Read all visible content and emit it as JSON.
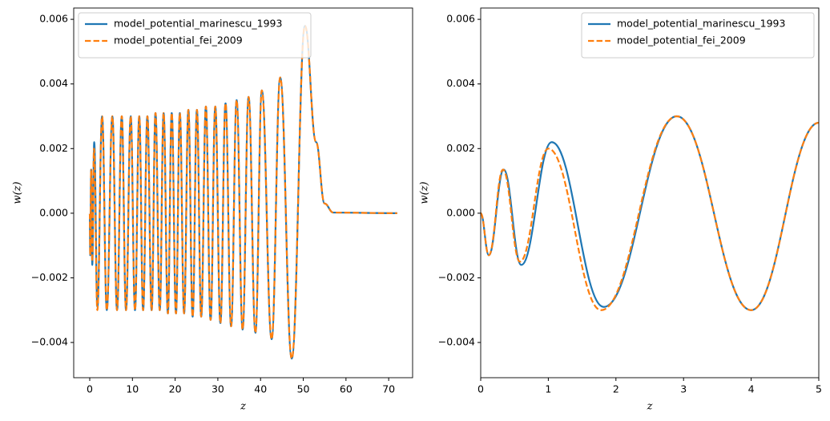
{
  "chart_data": [
    {
      "type": "line",
      "xlabel": "z",
      "ylabel": "w(z)",
      "legend": "upper left",
      "xlim": [
        -3.75,
        75.6
      ],
      "ylim": [
        -0.00509,
        0.00635
      ],
      "xticks": [
        0,
        10,
        20,
        30,
        40,
        50,
        60,
        70
      ],
      "yticks": [
        {
          "value": -0.004,
          "label": "−0.004"
        },
        {
          "value": -0.002,
          "label": "−0.002"
        },
        {
          "value": 0,
          "label": "0.000"
        },
        {
          "value": 0.002,
          "label": "0.002"
        },
        {
          "value": 0.004,
          "label": "0.004"
        },
        {
          "value": 0.006,
          "label": "0.006"
        }
      ],
      "series": [
        {
          "name": "model_potential_marinescu_1993",
          "color": "#1f77b4",
          "linestyle": "solid",
          "x": [
            0,
            0.12,
            0.34,
            0.6,
            1.05,
            1.8,
            2.9,
            4.0,
            5.3,
            6.4,
            7.5,
            8.5,
            9.6,
            10.6,
            11.6,
            12.5,
            13.5,
            14.5,
            15.4,
            16.4,
            17.3,
            18.3,
            19.2,
            20.2,
            21.1,
            22.1,
            23.1,
            24.1,
            25.1,
            26.1,
            27.2,
            28.3,
            29.4,
            30.6,
            31.8,
            33.1,
            34.4,
            35.8,
            37.2,
            38.8,
            40.3,
            42.6,
            44.6,
            47.3,
            50.4,
            53,
            55,
            57,
            72
          ],
          "values": [
            0,
            -0.0013,
            0.00135,
            -0.0016,
            0.0022,
            -0.0029,
            0.003,
            -0.003,
            0.003,
            -0.003,
            0.003,
            -0.003,
            0.003,
            -0.003,
            0.003,
            -0.003,
            0.003,
            -0.003,
            0.0031,
            -0.003,
            0.0031,
            -0.0031,
            0.0031,
            -0.0031,
            0.0031,
            -0.0031,
            0.0032,
            -0.0032,
            0.0032,
            -0.0032,
            0.0033,
            -0.0033,
            0.0033,
            -0.0034,
            0.0034,
            -0.0035,
            0.0035,
            -0.0036,
            0.0036,
            -0.0037,
            0.0038,
            -0.0039,
            0.0042,
            -0.0045,
            0.0058,
            0.0022,
            0.0003,
            2e-05,
            0
          ]
        },
        {
          "name": "model_potential_fei_2009",
          "color": "#ff7f0e",
          "linestyle": "dashed",
          "x": [
            0,
            0.12,
            0.33,
            0.58,
            1.0,
            1.78,
            2.9,
            4.0,
            5.3,
            6.4,
            7.5,
            8.5,
            9.6,
            10.6,
            11.6,
            12.5,
            13.5,
            14.5,
            15.4,
            16.4,
            17.3,
            18.3,
            19.2,
            20.2,
            21.1,
            22.1,
            23.1,
            24.1,
            25.1,
            26.1,
            27.2,
            28.3,
            29.4,
            30.6,
            31.8,
            33.1,
            34.4,
            35.8,
            37.2,
            38.8,
            40.3,
            42.6,
            44.6,
            47.3,
            50.4,
            53,
            55,
            57,
            72
          ],
          "values": [
            0,
            -0.0013,
            0.00135,
            -0.0015,
            0.002,
            -0.003,
            0.003,
            -0.003,
            0.003,
            -0.003,
            0.003,
            -0.003,
            0.003,
            -0.003,
            0.003,
            -0.003,
            0.003,
            -0.003,
            0.0031,
            -0.003,
            0.0031,
            -0.0031,
            0.0031,
            -0.0031,
            0.0031,
            -0.0031,
            0.0032,
            -0.0032,
            0.0032,
            -0.0032,
            0.0033,
            -0.0033,
            0.0033,
            -0.0034,
            0.0034,
            -0.0035,
            0.0035,
            -0.0036,
            0.0036,
            -0.0037,
            0.0038,
            -0.0039,
            0.0042,
            -0.0045,
            0.0058,
            0.0022,
            0.0003,
            2e-05,
            0
          ]
        }
      ]
    },
    {
      "type": "line",
      "xlabel": "z",
      "ylabel": "w(z)",
      "legend": "upper right",
      "xlim": [
        0,
        5
      ],
      "ylim": [
        -0.00509,
        0.00635
      ],
      "xticks": [
        0,
        1,
        2,
        3,
        4,
        5
      ],
      "yticks": [
        {
          "value": -0.004,
          "label": "−0.004"
        },
        {
          "value": -0.002,
          "label": "−0.002"
        },
        {
          "value": 0,
          "label": "0.000"
        },
        {
          "value": 0.002,
          "label": "0.002"
        },
        {
          "value": 0.004,
          "label": "0.004"
        },
        {
          "value": 0.006,
          "label": "0.006"
        }
      ],
      "series": [
        {
          "name": "model_potential_marinescu_1993",
          "color": "#1f77b4",
          "linestyle": "solid",
          "x": [
            0,
            0.12,
            0.34,
            0.6,
            1.05,
            1.82,
            2.9,
            4.0,
            5.0
          ],
          "values": [
            0,
            -0.0013,
            0.00135,
            -0.0016,
            0.0022,
            -0.0029,
            0.003,
            -0.003,
            0.0028
          ]
        },
        {
          "name": "model_potential_fei_2009",
          "color": "#ff7f0e",
          "linestyle": "dashed",
          "x": [
            0,
            0.12,
            0.33,
            0.58,
            1.0,
            1.78,
            2.9,
            4.0,
            5.0
          ],
          "values": [
            0,
            -0.0013,
            0.00135,
            -0.0015,
            0.002,
            -0.003,
            0.003,
            -0.003,
            0.0028
          ]
        }
      ]
    }
  ]
}
